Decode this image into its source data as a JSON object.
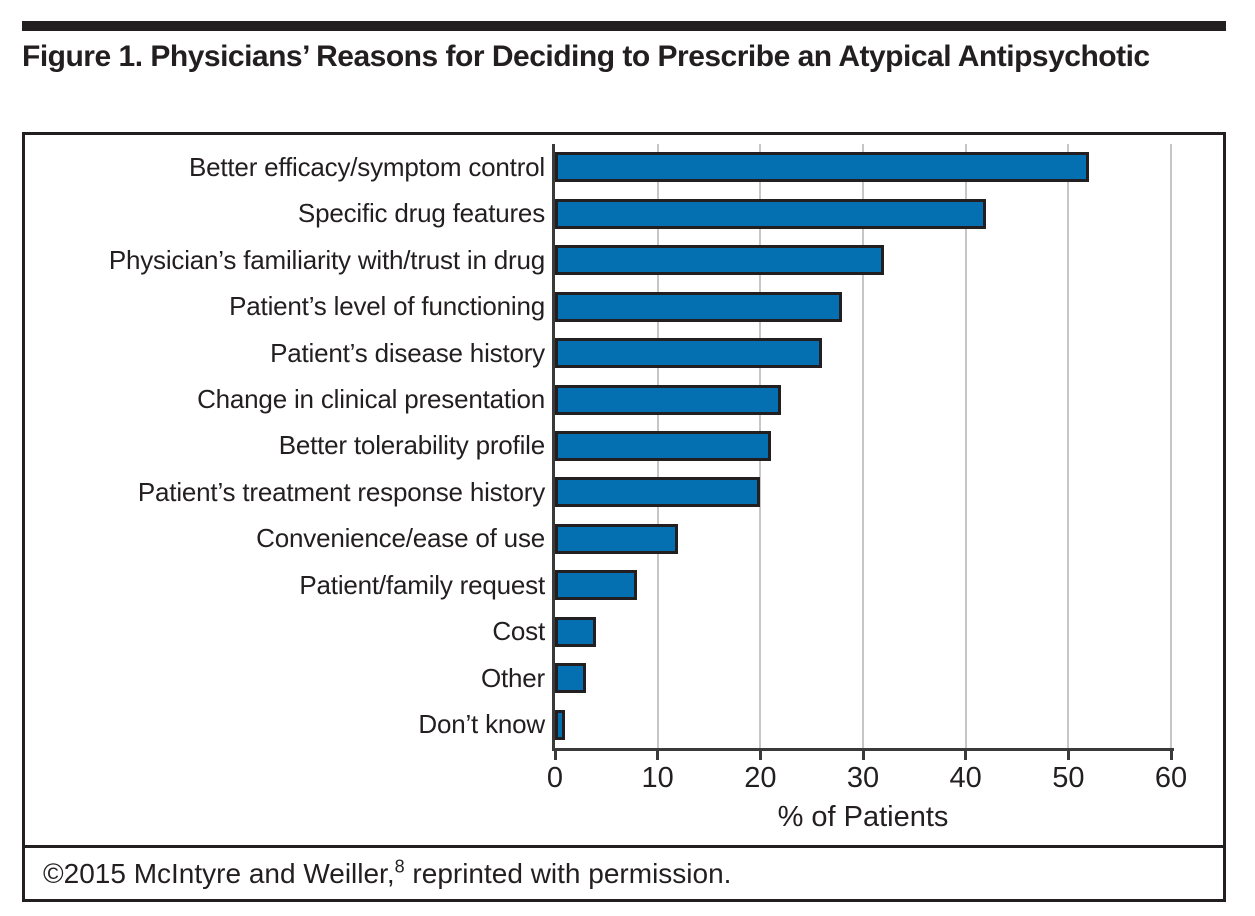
{
  "title": "Figure 1. Physicians’ Reasons for Deciding to Prescribe an Atypical Antipsychotic",
  "footer": {
    "text_before_sup": "©2015 McIntyre and Weiller,",
    "sup": "8",
    "text_after_sup": " reprinted with permission."
  },
  "chart_data": {
    "type": "bar",
    "orientation": "horizontal",
    "title": "Figure 1. Physicians’ Reasons for Deciding to Prescribe an Atypical Antipsychotic",
    "categories": [
      "Better efficacy/symptom control",
      "Specific drug features",
      "Physician’s familiarity with/trust in drug",
      "Patient’s level of functioning",
      "Patient’s disease history",
      "Change in clinical presentation",
      "Better tolerability profile",
      "Patient’s treatment response history",
      "Convenience/ease of use",
      "Patient/family request",
      "Cost",
      "Other",
      "Don’t know"
    ],
    "values": [
      52,
      42,
      32,
      28,
      26,
      22,
      21,
      20,
      12,
      8,
      4,
      3,
      1
    ],
    "xlabel": "% of Patients",
    "ylabel": "",
    "xlim": [
      0,
      60
    ],
    "xticks": [
      0,
      10,
      20,
      30,
      40,
      50,
      60
    ],
    "grid": true,
    "legend": false,
    "colors": {
      "bar_fill": "#0570b1",
      "bar_border": "#231f20",
      "gridline": "#c6c6c6",
      "axis": "#3a3a3b",
      "text": "#231f20"
    }
  }
}
